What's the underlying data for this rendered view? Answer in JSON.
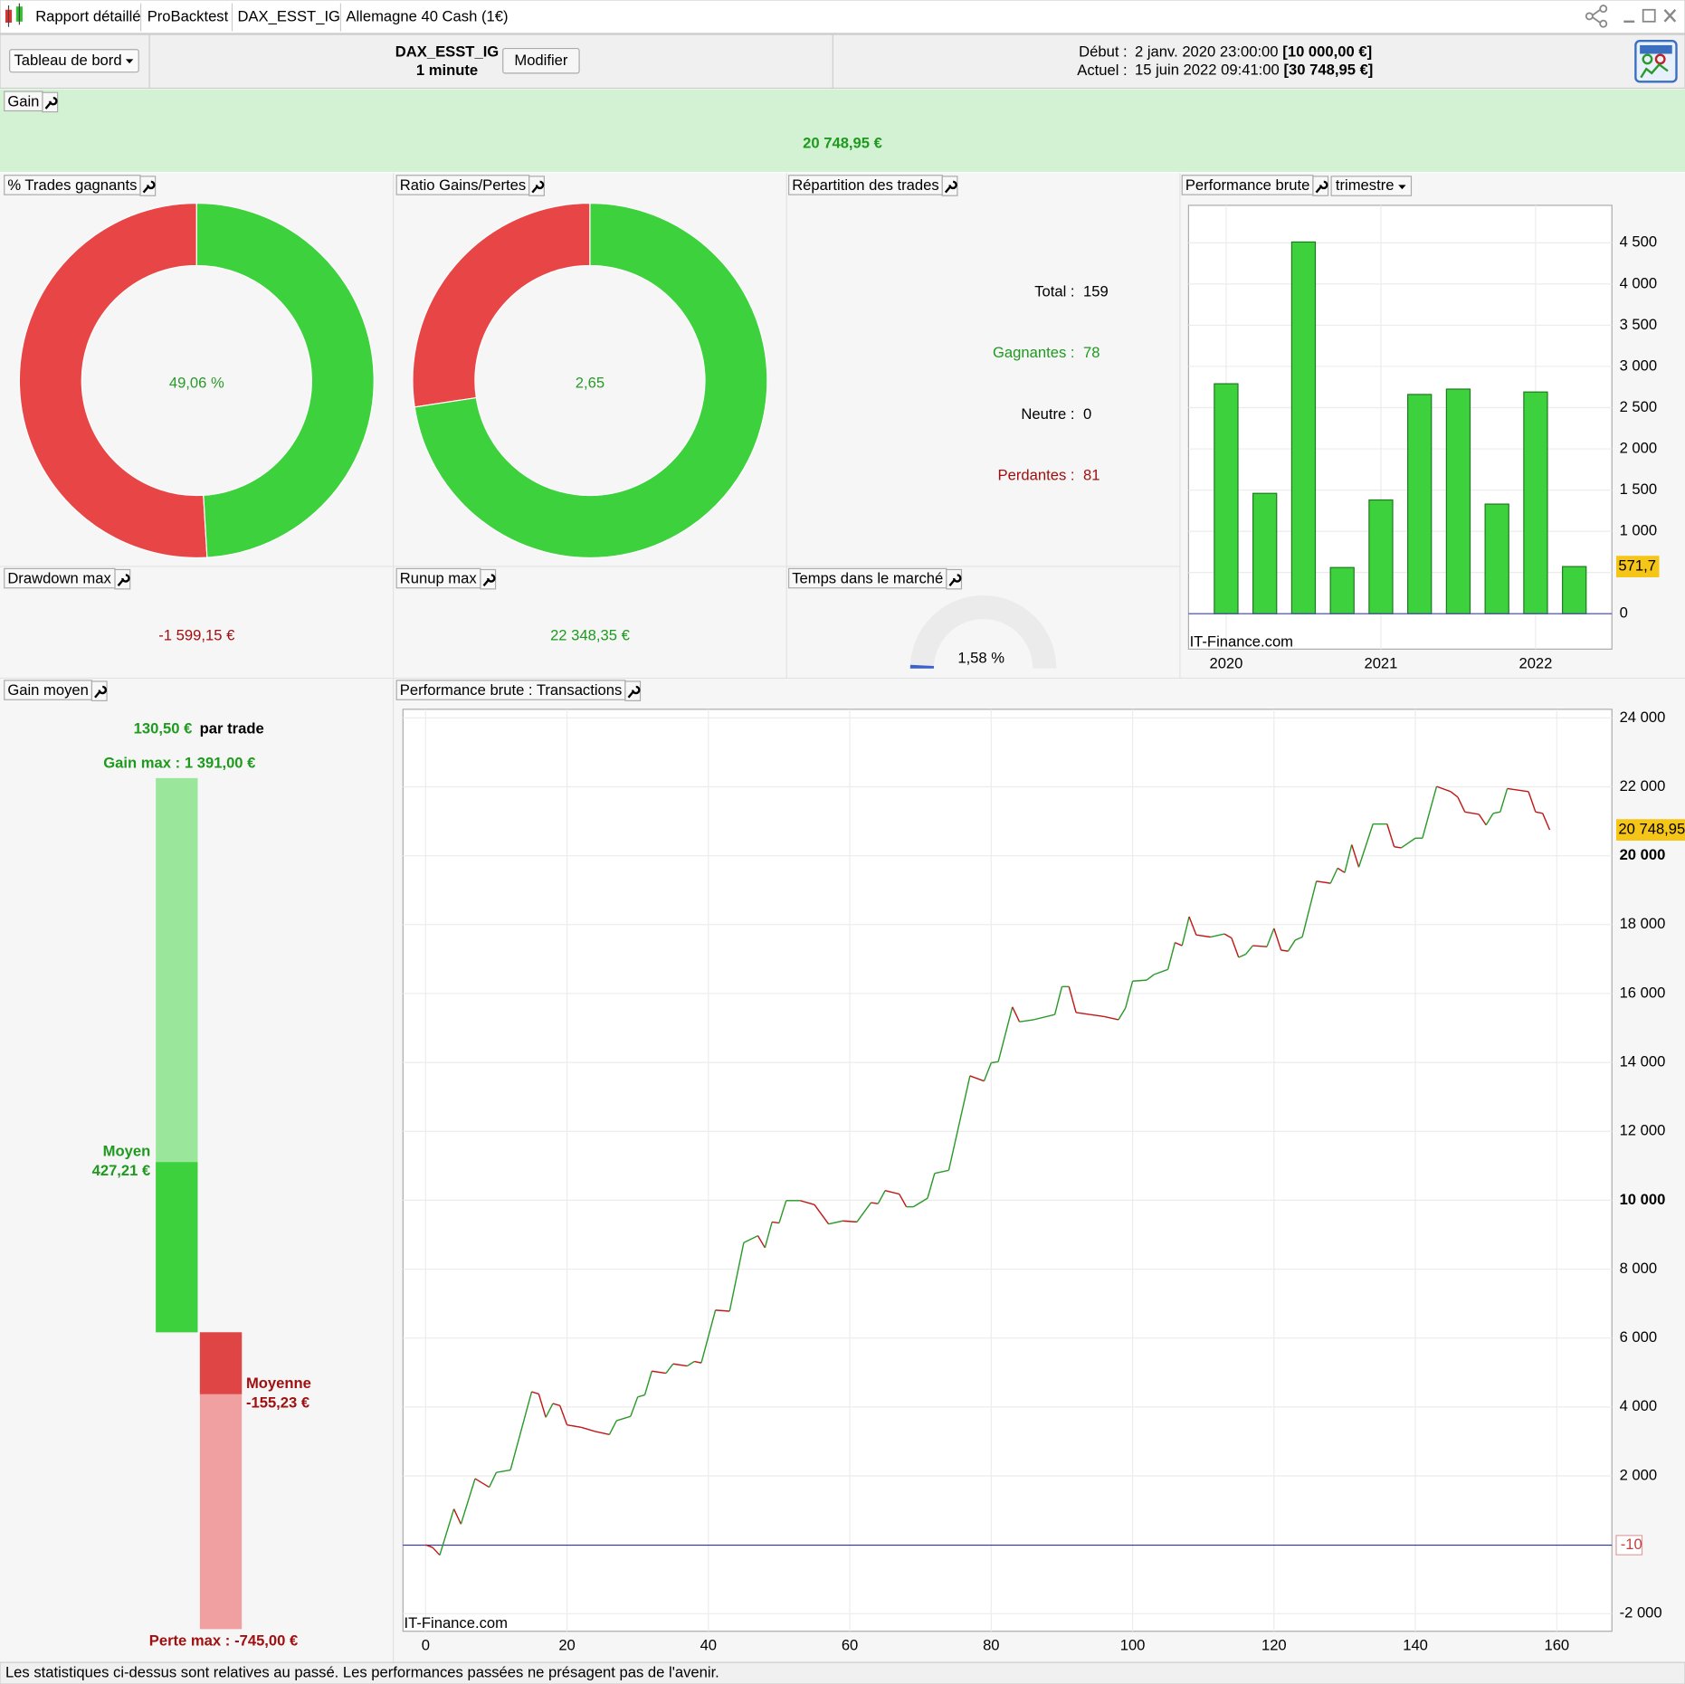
{
  "titlebar": {
    "tabs": [
      "Rapport détaillé",
      "ProBacktest",
      "DAX_ESST_IG",
      "Allemagne 40 Cash (1€)"
    ]
  },
  "toolbar": {
    "dashboard": "Tableau de bord",
    "instrument": "DAX_ESST_IG",
    "timeframe": "1 minute",
    "button": "Modifier",
    "start_label": "Début :",
    "start_date": "2 janv. 2020 23:00:00",
    "start_value": "[10 000,00 €]",
    "current_label": "Actuel :",
    "current_date": "15 juin 2022 09:41:00",
    "current_value": "[30 748,95 €]"
  },
  "gain": {
    "title": "Gain",
    "value": "20 748,95 €"
  },
  "win_rate": {
    "title": "% Trades gagnants",
    "value": 49.06,
    "value_label": "49,06 %"
  },
  "ratio": {
    "title": "Ratio Gains/Pertes",
    "value": 2.65,
    "value_label": "2,65"
  },
  "distribution": {
    "title": "Répartition des trades",
    "rows": [
      {
        "label": "Total :",
        "value": 159
      },
      {
        "label": "Gagnantes :",
        "value": 78
      },
      {
        "label": "Neutre :",
        "value": 0
      },
      {
        "label": "Perdantes :",
        "value": 81
      }
    ]
  },
  "quarterly": {
    "type": "bar",
    "title": "Performance brute",
    "period": "trimestre",
    "watermark": "IT-Finance.com",
    "categories": [
      "2020",
      null,
      null,
      null,
      "2021",
      null,
      null,
      null,
      "2022",
      null
    ],
    "values": [
      2790,
      1460,
      4510,
      560,
      1380,
      2660,
      2725,
      1330,
      2690,
      571.7
    ],
    "last_label": "571,7",
    "color": "#3dd13d",
    "ylim": [
      -430,
      4955
    ],
    "yticks": [
      0,
      500,
      {
        "value": 1000,
        "label": "1 000"
      },
      {
        "value": 1500,
        "label": "1 500"
      },
      {
        "value": 2000,
        "label": "2 000"
      },
      {
        "value": 2500,
        "label": "2 500"
      },
      {
        "value": 3000,
        "label": "3 000"
      },
      {
        "value": 3500,
        "label": "3 500"
      },
      {
        "value": 4000,
        "label": "4 000"
      },
      {
        "value": 4500,
        "label": "4 500"
      }
    ],
    "grid": true
  },
  "drawdown": {
    "title": "Drawdown max",
    "value": "-1 599,15 €"
  },
  "runup": {
    "title": "Runup max",
    "value": "22 348,35 €"
  },
  "market_time": {
    "title": "Temps dans le marché",
    "value": 1.58,
    "value_label": "1,58 %"
  },
  "average_gain": {
    "title": "Gain moyen",
    "average": "130,50 €",
    "unit": "par trade",
    "gain_max": {
      "label": "Gain max :",
      "value": 1391,
      "value_label": "1 391,00 €"
    },
    "avg_win": {
      "label": "Moyen",
      "value": 427.21,
      "value_label": "427,21 €"
    },
    "avg_loss": {
      "label": "Moyenne",
      "value": -155.23,
      "value_label": "-155,23 €"
    },
    "loss_max": {
      "label": "Perte max :",
      "value": -745,
      "value_label": "-745,00 €"
    }
  },
  "transactions": {
    "type": "line",
    "title": "Performance brute : Transactions",
    "watermark": "IT-Finance.com",
    "x": [
      0,
      1,
      2,
      4,
      5,
      7,
      9,
      10,
      12,
      15,
      16,
      17,
      18,
      19,
      20,
      22,
      24,
      26,
      27,
      29,
      30,
      31,
      32,
      34,
      35,
      37,
      38,
      39,
      41,
      43,
      45,
      47,
      48,
      49,
      50,
      51,
      53,
      55,
      57,
      59,
      61,
      63,
      64,
      65,
      67,
      68,
      69,
      71,
      72,
      74,
      77,
      79,
      80,
      81,
      83,
      84,
      86,
      89,
      90,
      91,
      92,
      94,
      96,
      98,
      99,
      100,
      102,
      103,
      105,
      106,
      107,
      108,
      109,
      111,
      113,
      114,
      115,
      116,
      117,
      119,
      120,
      121,
      122,
      123,
      124,
      126,
      128,
      129,
      130,
      131,
      132,
      134,
      136,
      137,
      138,
      140,
      141,
      143,
      145,
      146,
      147,
      149,
      150,
      151,
      152,
      153,
      156,
      157,
      158,
      159
    ],
    "values": [
      0,
      -80,
      -300,
      1040,
      600,
      1920,
      1670,
      2100,
      2170,
      4440,
      4380,
      3700,
      4100,
      4040,
      3480,
      3410,
      3290,
      3200,
      3600,
      3730,
      4290,
      4350,
      5040,
      4980,
      5250,
      5190,
      5320,
      5280,
      6810,
      6780,
      8770,
      8970,
      8620,
      9370,
      9340,
      9990,
      9990,
      9870,
      9310,
      9400,
      9370,
      9930,
      9900,
      10280,
      10180,
      9810,
      9810,
      10060,
      10780,
      10870,
      13610,
      13460,
      13990,
      14020,
      15610,
      15180,
      15240,
      15390,
      16200,
      16200,
      15450,
      15390,
      15330,
      15240,
      15580,
      16360,
      16390,
      16550,
      16700,
      17480,
      17390,
      18230,
      17700,
      17640,
      17730,
      17610,
      17050,
      17140,
      17390,
      17360,
      17890,
      17260,
      17230,
      17550,
      17640,
      19260,
      19200,
      19640,
      19510,
      20320,
      19670,
      20920,
      20920,
      20260,
      20230,
      20510,
      20510,
      22010,
      21860,
      21700,
      21270,
      21200,
      20890,
      21230,
      21270,
      21950,
      21860,
      21270,
      21230,
      20748.95
    ],
    "last_label": "20 748,95",
    "up_color": "#2a9a2a",
    "down_color": "#c01818",
    "ref_line": -10,
    "xlim": [
      -3.2,
      167.8
    ],
    "xticks": [
      0,
      20,
      40,
      60,
      80,
      100,
      120,
      140,
      160
    ],
    "ylim": [
      -2510,
      24250
    ],
    "yticks": [
      {
        "value": -2000,
        "label": "-2 000"
      },
      {
        "value": 2000,
        "label": "2 000"
      },
      {
        "value": 4000,
        "label": "4 000"
      },
      {
        "value": 6000,
        "label": "6 000"
      },
      {
        "value": 8000,
        "label": "8 000"
      },
      {
        "value": 10000,
        "label": "10 000",
        "bold": true
      },
      {
        "value": 12000,
        "label": "12 000"
      },
      {
        "value": 14000,
        "label": "14 000"
      },
      {
        "value": 16000,
        "label": "16 000"
      },
      {
        "value": 18000,
        "label": "18 000"
      },
      {
        "value": 20000,
        "label": "20 000",
        "bold": true
      },
      {
        "value": 22000,
        "label": "22 000"
      },
      {
        "value": 24000,
        "label": "24 000"
      }
    ],
    "grid": true
  },
  "footer": "Les statistiques ci-dessus sont relatives au passé. Les performances passées ne présagent pas de l'avenir."
}
